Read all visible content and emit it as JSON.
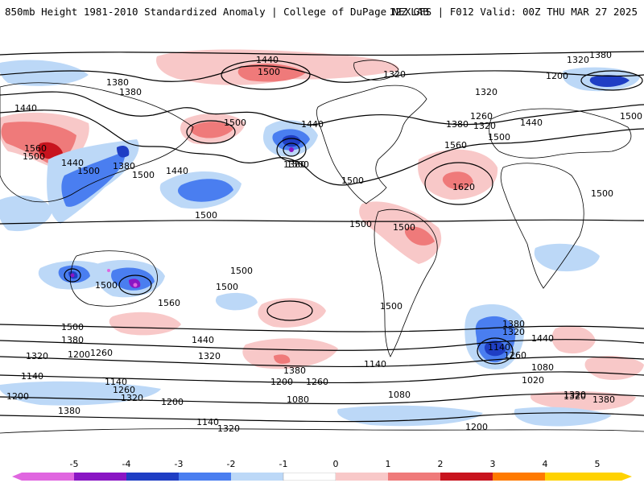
{
  "header": {
    "title_left": "850mb Height 1981-2010 Standardized Anomaly | College of DuPage NEXLAB",
    "title_right": "12Z GFS | F012 Valid: 00Z THU MAR 27 2025"
  },
  "colors": {
    "anom_neg5": "#e066e0",
    "anom_neg4": "#8a16c4",
    "anom_neg3": "#1f3ec4",
    "anom_neg2": "#4a7ef0",
    "anom_neg1": "#bcd8f7",
    "anom_zero": "#ffffff",
    "anom_pos1": "#f8c8c8",
    "anom_pos2": "#ef7a7a",
    "anom_pos3": "#c8141e",
    "anom_pos4": "#ff7a00",
    "anom_pos5": "#ffd200"
  },
  "contour_labels": [
    "1440",
    "1500",
    "1380",
    "1320",
    "1380",
    "1440",
    "1380",
    "1500",
    "1320",
    "1200",
    "1560",
    "1500",
    "1440",
    "1500",
    "1380",
    "1500",
    "1440",
    "1500",
    "1440",
    "1380",
    "1620",
    "1560",
    "1500",
    "1440",
    "1320",
    "1260",
    "1380",
    "1320",
    "1500",
    "1500",
    "1500",
    "1500",
    "1500",
    "1500",
    "1560",
    "1500",
    "1500",
    "1500",
    "1500",
    "1500",
    "1380",
    "1320",
    "1200",
    "1260",
    "1440",
    "1320",
    "1140",
    "1260",
    "1320",
    "1200",
    "1380",
    "1080",
    "1140",
    "1200",
    "1320",
    "1140",
    "1380",
    "1080",
    "1200",
    "1260",
    "1140",
    "1200",
    "1320",
    "1380",
    "1440",
    "1080",
    "1020",
    "1320",
    "1260",
    "1380",
    "1320",
    "1140"
  ],
  "colorbar": {
    "ticks": [
      "-5",
      "-4",
      "-3",
      "-2",
      "-1",
      "0",
      "1",
      "2",
      "3",
      "4",
      "5"
    ]
  }
}
